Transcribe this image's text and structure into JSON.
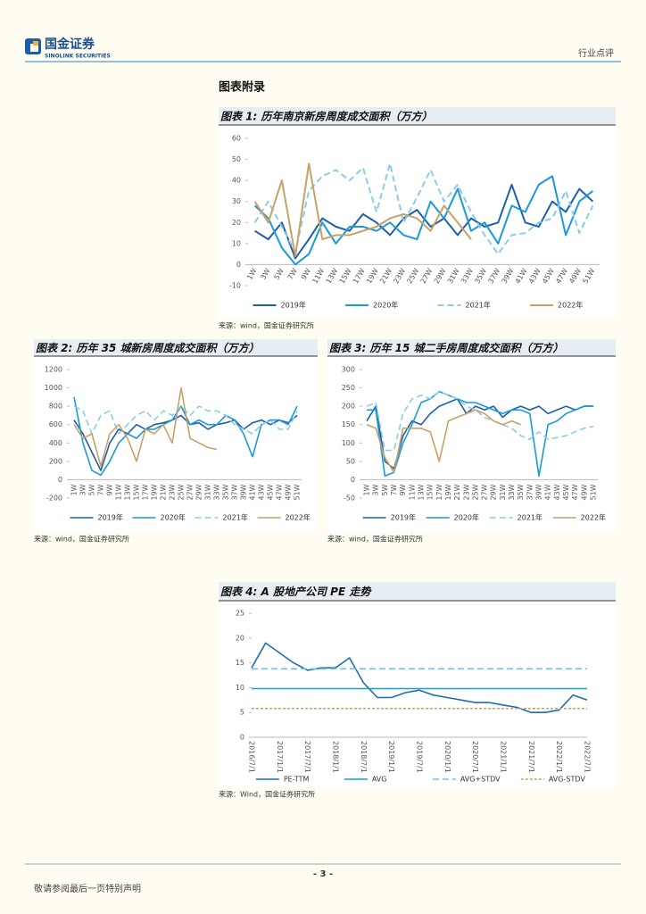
{
  "header": {
    "company": "国金证券",
    "company_en": "SINOLINK SECURITIES",
    "section": "行业点评"
  },
  "appendix_title": "图表附录",
  "footer": {
    "page": "- 3 -",
    "disclaimer": "敬请参阅最后一页特别声明"
  },
  "chart_data": [
    {
      "type": "line",
      "title": "图表 1: 历年南京新房周度成交面积（万方）",
      "note": "来源：wind，国金证券研究所",
      "categories": [
        "1W",
        "3W",
        "5W",
        "7W",
        "9W",
        "11W",
        "13W",
        "15W",
        "17W",
        "19W",
        "21W",
        "23W",
        "25W",
        "27W",
        "29W",
        "31W",
        "33W",
        "35W",
        "37W",
        "39W",
        "41W",
        "43W",
        "45W",
        "47W",
        "49W",
        "51W"
      ],
      "ylim": [
        -10,
        60
      ],
      "yticks": [
        -10,
        0,
        10,
        20,
        30,
        40,
        50,
        60
      ],
      "grid": false,
      "series": [
        {
          "name": "2019年",
          "color": "#1f5fa8",
          "dash": false,
          "values": [
            16,
            12,
            20,
            3,
            12,
            22,
            18,
            16,
            24,
            20,
            14,
            22,
            26,
            18,
            22,
            14,
            22,
            18,
            20,
            38,
            20,
            18,
            30,
            25,
            36,
            30
          ]
        },
        {
          "name": "2020年",
          "color": "#1a9ad6",
          "dash": false,
          "values": [
            28,
            22,
            8,
            0,
            5,
            20,
            10,
            18,
            18,
            16,
            20,
            14,
            12,
            30,
            22,
            36,
            16,
            20,
            10,
            28,
            25,
            38,
            42,
            14,
            30,
            35
          ]
        },
        {
          "name": "2021年",
          "color": "#8ccbec",
          "dash": true,
          "values": [
            20,
            30,
            18,
            6,
            35,
            42,
            45,
            40,
            46,
            25,
            48,
            20,
            32,
            45,
            30,
            38,
            25,
            14,
            5,
            14,
            15,
            20,
            22,
            35,
            15,
            28
          ]
        },
        {
          "name": "2022年",
          "color": "#c8a165",
          "dash": false,
          "values": [
            30,
            20,
            40,
            4,
            48,
            12,
            14,
            14,
            16,
            18,
            22,
            24,
            22,
            16,
            28,
            20,
            12,
            null,
            null,
            null,
            null,
            null,
            null,
            null,
            null,
            null
          ]
        }
      ]
    },
    {
      "type": "line",
      "title": "图表 2: 历年 35 城新房周度成交面积（万方）",
      "note": "来源：wind，国金证券研究所",
      "categories": [
        "1W",
        "3W",
        "5W",
        "7W",
        "9W",
        "11W",
        "13W",
        "15W",
        "17W",
        "19W",
        "21W",
        "23W",
        "25W",
        "27W",
        "29W",
        "31W",
        "33W",
        "35W",
        "37W",
        "39W",
        "41W",
        "43W",
        "45W",
        "47W",
        "49W",
        "51W"
      ],
      "ylim": [
        -200,
        1200
      ],
      "yticks": [
        -200,
        0,
        200,
        400,
        600,
        800,
        1000,
        1200
      ],
      "grid": false,
      "series": [
        {
          "name": "2019年",
          "color": "#1f5fa8",
          "dash": false,
          "values": [
            650,
            500,
            300,
            100,
            400,
            550,
            500,
            600,
            550,
            600,
            620,
            650,
            700,
            600,
            620,
            550,
            600,
            620,
            650,
            550,
            620,
            650,
            600,
            650,
            620,
            700
          ]
        },
        {
          "name": "2020年",
          "color": "#1a9ad6",
          "dash": false,
          "values": [
            900,
            400,
            100,
            50,
            200,
            400,
            500,
            450,
            550,
            550,
            600,
            650,
            800,
            600,
            650,
            600,
            600,
            700,
            650,
            500,
            250,
            600,
            650,
            650,
            600,
            800
          ]
        },
        {
          "name": "2021年",
          "color": "#8ccbec",
          "dash": true,
          "values": [
            800,
            750,
            500,
            700,
            750,
            500,
            600,
            700,
            750,
            650,
            750,
            700,
            800,
            700,
            800,
            750,
            750,
            700,
            600,
            550,
            500,
            600,
            650,
            550,
            550,
            750
          ]
        },
        {
          "name": "2022年",
          "color": "#c8a165",
          "dash": false,
          "values": [
            600,
            450,
            500,
            150,
            500,
            600,
            450,
            200,
            550,
            500,
            600,
            400,
            1000,
            450,
            400,
            350,
            330,
            null,
            null,
            null,
            null,
            null,
            null,
            null,
            null,
            null
          ]
        }
      ]
    },
    {
      "type": "line",
      "title": "图表 3: 历年 15 城二手房周度成交面积（万方）",
      "note": "来源：wind，国金证券研究所",
      "categories": [
        "1W",
        "3W",
        "5W",
        "7W",
        "9W",
        "11W",
        "13W",
        "15W",
        "17W",
        "19W",
        "21W",
        "23W",
        "25W",
        "27W",
        "29W",
        "31W",
        "33W",
        "35W",
        "37W",
        "39W",
        "41W",
        "43W",
        "45W",
        "47W",
        "49W",
        "51W"
      ],
      "ylim": [
        -50,
        300
      ],
      "yticks": [
        -50,
        0,
        50,
        100,
        150,
        200,
        250,
        300
      ],
      "grid": false,
      "series": [
        {
          "name": "2019年",
          "color": "#1f5fa8",
          "dash": false,
          "values": [
            160,
            200,
            50,
            30,
            120,
            160,
            150,
            180,
            200,
            210,
            220,
            180,
            200,
            190,
            200,
            170,
            190,
            200,
            190,
            200,
            180,
            190,
            200,
            190,
            200,
            200
          ]
        },
        {
          "name": "2020年",
          "color": "#1a9ad6",
          "dash": false,
          "values": [
            190,
            190,
            10,
            20,
            100,
            150,
            210,
            220,
            240,
            230,
            220,
            210,
            210,
            200,
            190,
            180,
            190,
            190,
            180,
            10,
            150,
            160,
            180,
            190,
            200,
            200
          ]
        },
        {
          "name": "2021年",
          "color": "#8ccbec",
          "dash": true,
          "values": [
            200,
            210,
            80,
            80,
            180,
            220,
            230,
            220,
            240,
            230,
            220,
            200,
            190,
            170,
            160,
            150,
            140,
            120,
            110,
            130,
            110,
            115,
            120,
            130,
            140,
            145
          ]
        },
        {
          "name": "2022年",
          "color": "#c8a165",
          "dash": false,
          "values": [
            150,
            140,
            60,
            20,
            140,
            140,
            140,
            130,
            50,
            160,
            170,
            180,
            190,
            180,
            160,
            150,
            160,
            150,
            null,
            null,
            null,
            null,
            null,
            null,
            null,
            null
          ]
        }
      ]
    },
    {
      "type": "line",
      "title": "图表 4: A 股地产公司 PE 走势",
      "note": "来源：Wind，国金证券研究所",
      "categories": [
        "2016/7/1",
        null,
        "2017/1/1",
        null,
        "2017/7/1",
        null,
        "2018/1/1",
        null,
        "2018/7/1",
        null,
        "2019/1/1",
        null,
        "2019/7/1",
        null,
        "2020/1/1",
        null,
        "2020/7/1",
        null,
        "2021/1/1",
        null,
        "2021/7/1",
        null,
        "2022/1/1",
        null,
        "2022/7/1"
      ],
      "ylim": [
        0,
        25
      ],
      "yticks": [
        0,
        5,
        10,
        15,
        20,
        25
      ],
      "grid": false,
      "series": [
        {
          "name": "PE-TTM",
          "color": "#1f6fb0",
          "dash": false,
          "values": [
            14,
            19,
            17,
            15,
            13.5,
            14,
            14,
            16,
            11,
            8,
            8,
            9,
            9.5,
            8.5,
            8,
            7.5,
            7,
            7,
            6.5,
            6,
            5,
            5,
            5.5,
            8.5,
            7.5
          ]
        },
        {
          "name": "AVG",
          "color": "#1a9ad6",
          "dash": false,
          "value": 9.8
        },
        {
          "name": "AVG+STDV",
          "color": "#6fbfe8",
          "dash": true,
          "value": 13.8
        },
        {
          "name": "AVG-STDV",
          "color": "#c8a165",
          "dash": true,
          "value": 5.8
        }
      ]
    }
  ]
}
